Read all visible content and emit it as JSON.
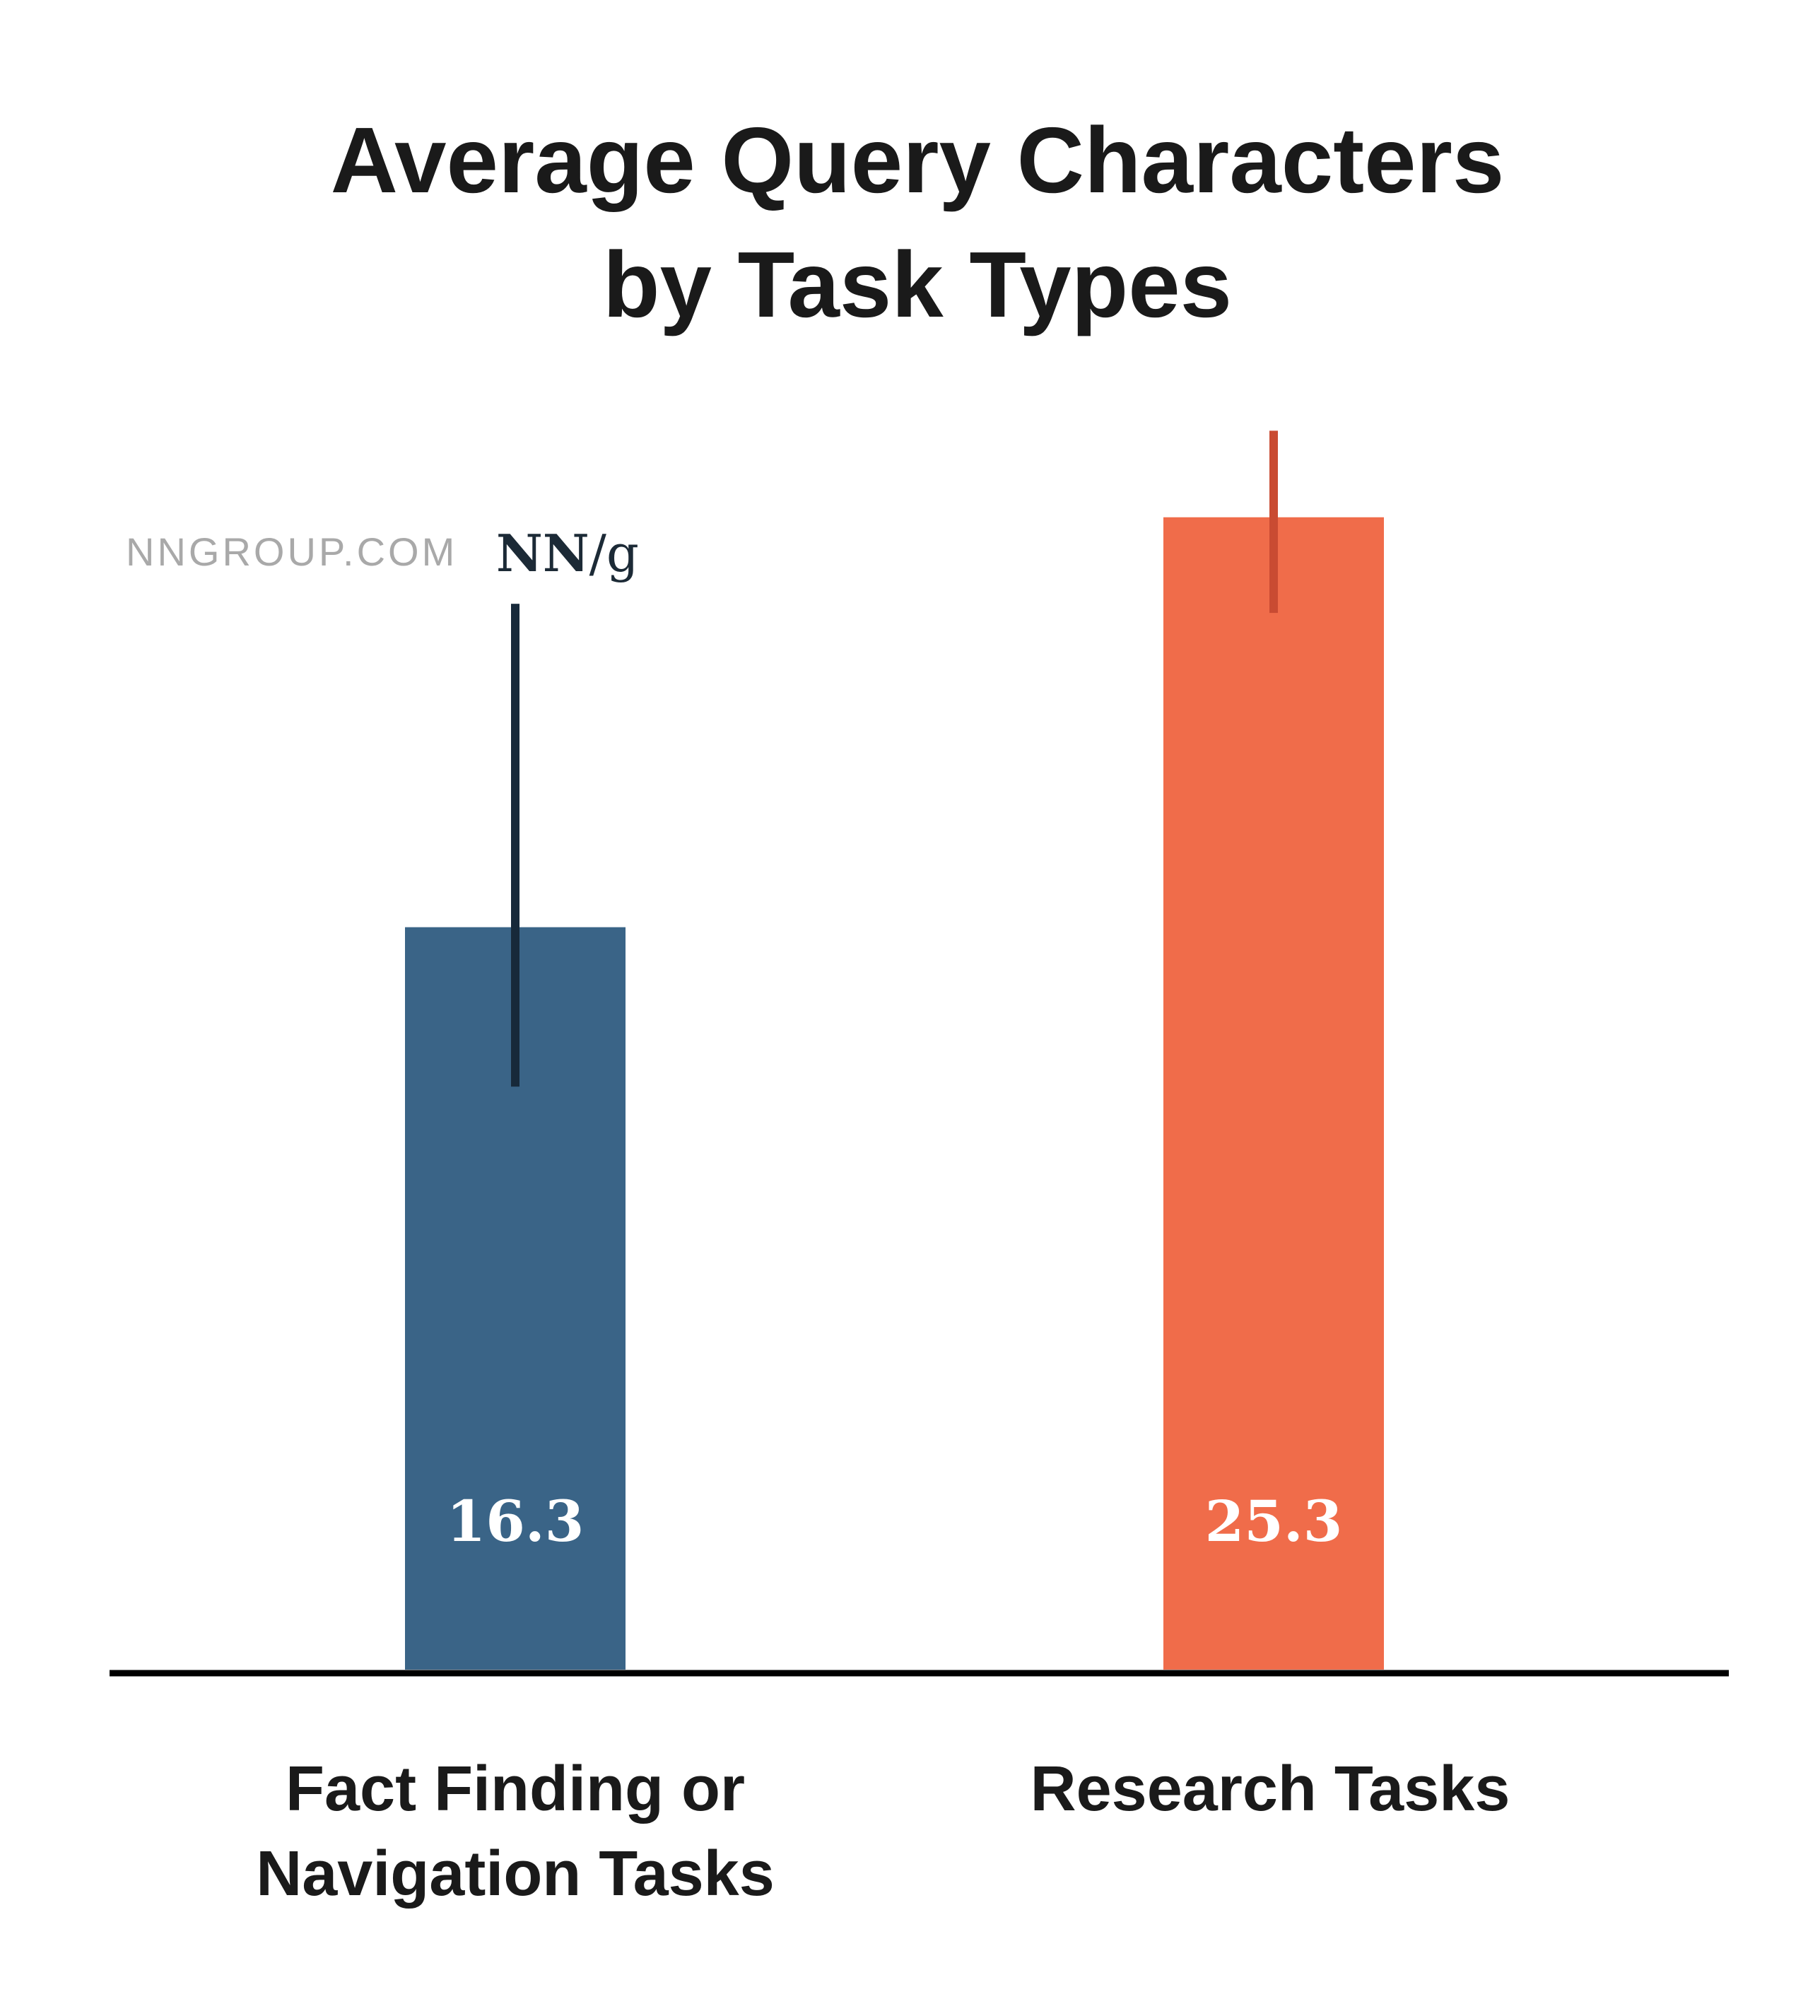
{
  "chart_data": {
    "type": "bar",
    "title": [
      "Average Query Characters",
      "by Task Types"
    ],
    "categories": [
      [
        "Fact Finding or",
        "Navigation Tasks"
      ],
      [
        "Research Tasks"
      ]
    ],
    "values": [
      16.3,
      25.3
    ],
    "value_labels": [
      "16.3",
      "25.3"
    ],
    "error_bars": [
      {
        "low": 12.8,
        "high": 23.4
      },
      {
        "low": 23.2,
        "high": 27.2
      }
    ],
    "colors": [
      "#3a6487",
      "#f06c4a"
    ],
    "error_bar_colors": [
      "#17293a",
      "#c94b32"
    ],
    "ylim": [
      0,
      27.5
    ],
    "xlabel": "",
    "ylabel": "",
    "grid": false,
    "legend": "none"
  },
  "watermark": {
    "site": "NNGROUP.COM",
    "logo_bold": "NN",
    "logo_rest": "/g"
  }
}
